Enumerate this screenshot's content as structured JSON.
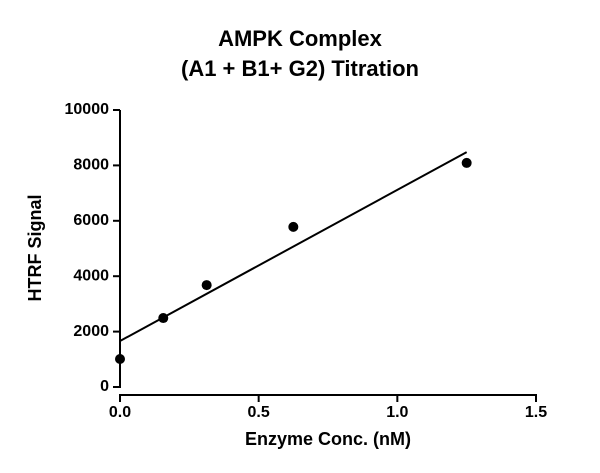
{
  "chart_data": {
    "type": "scatter",
    "title": [
      "AMPK Complex",
      "(A1 + B1+ G2) Titration"
    ],
    "x_label": "Enzyme Conc. (nM)",
    "y_label": "HTRF Signal",
    "series": [
      {
        "color": "#000000",
        "x": [
          0,
          0.156,
          0.3125,
          0.625,
          1.25
        ],
        "values": [
          1010,
          2490,
          3680,
          5780,
          8090
        ]
      }
    ],
    "fit_line": {
      "color": "#000000",
      "x": [
        0,
        1.25
      ],
      "values": [
        1660,
        8480
      ]
    },
    "xlim": [
      0,
      1.5
    ],
    "xticks": [
      {
        "value": 0,
        "label": "0.0"
      },
      0.5,
      {
        "value": 1,
        "label": "1.0"
      },
      1.5
    ],
    "ylim": [
      0,
      10000
    ],
    "yticks": [
      0,
      2000,
      4000,
      6000,
      8000,
      10000
    ],
    "grid": false
  }
}
